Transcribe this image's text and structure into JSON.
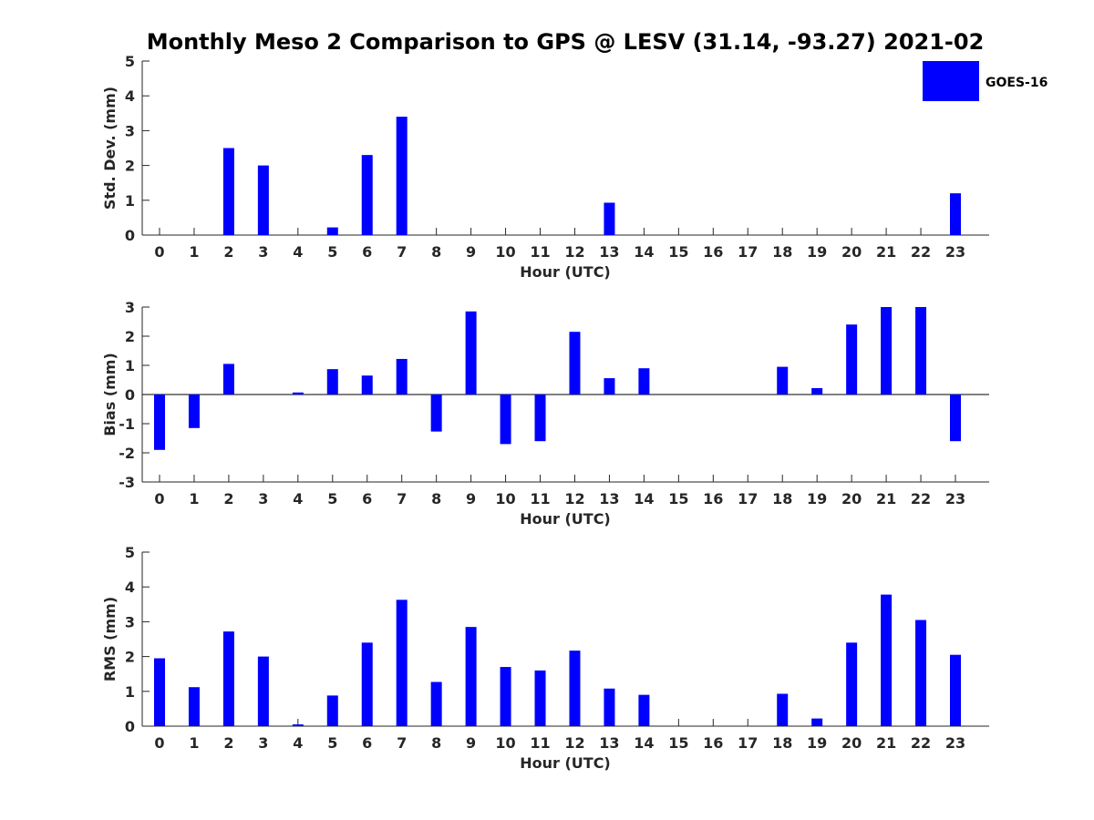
{
  "title": "Monthly Meso 2 Comparison to GPS @ LESV (31.14, -93.27) 2021-02",
  "legend": {
    "label": "GOES-16",
    "color": "#0000ff",
    "placement": "top-right"
  },
  "colors": {
    "bar": "#0000ff",
    "axis": "#262626"
  },
  "chart_data": [
    {
      "type": "bar",
      "ylabel": "Std. Dev. (mm)",
      "xlabel": "Hour (UTC)",
      "categories": [
        "0",
        "1",
        "2",
        "3",
        "4",
        "5",
        "6",
        "7",
        "8",
        "9",
        "10",
        "11",
        "12",
        "13",
        "14",
        "15",
        "16",
        "17",
        "18",
        "19",
        "20",
        "21",
        "22",
        "23"
      ],
      "values": [
        0,
        0,
        2.5,
        2.0,
        0,
        0.22,
        2.3,
        3.4,
        0,
        0,
        0,
        0,
        0,
        0.93,
        0,
        0,
        0,
        0,
        0,
        0,
        0,
        0,
        0,
        1.2
      ],
      "ylim": [
        0,
        5
      ],
      "yticks": [
        "0",
        "1",
        "2",
        "3",
        "4",
        "5"
      ],
      "grid": false
    },
    {
      "type": "bar",
      "ylabel": "Bias (mm)",
      "xlabel": "Hour (UTC)",
      "categories": [
        "0",
        "1",
        "2",
        "3",
        "4",
        "5",
        "6",
        "7",
        "8",
        "9",
        "10",
        "11",
        "12",
        "13",
        "14",
        "15",
        "16",
        "17",
        "18",
        "19",
        "20",
        "21",
        "22",
        "23"
      ],
      "values": [
        -1.9,
        -1.15,
        1.05,
        0,
        0.07,
        0.87,
        0.65,
        1.22,
        -1.27,
        2.85,
        -1.7,
        -1.6,
        2.15,
        0.56,
        0.9,
        0,
        0,
        0,
        0.95,
        0.22,
        2.4,
        3.0,
        3.0,
        -1.6
      ],
      "ylim": [
        -3,
        3
      ],
      "yticks": [
        "-3",
        "-2",
        "-1",
        "0",
        "1",
        "2",
        "3"
      ],
      "grid": false
    },
    {
      "type": "bar",
      "ylabel": "RMS (mm)",
      "xlabel": "Hour (UTC)",
      "categories": [
        "0",
        "1",
        "2",
        "3",
        "4",
        "5",
        "6",
        "7",
        "8",
        "9",
        "10",
        "11",
        "12",
        "13",
        "14",
        "15",
        "16",
        "17",
        "18",
        "19",
        "20",
        "21",
        "22",
        "23"
      ],
      "values": [
        1.95,
        1.12,
        2.72,
        2.0,
        0.05,
        0.88,
        2.4,
        3.63,
        1.27,
        2.85,
        1.7,
        1.6,
        2.17,
        1.08,
        0.9,
        0,
        0,
        0,
        0.93,
        0.22,
        2.4,
        3.78,
        3.05,
        2.05
      ],
      "ylim": [
        0,
        5
      ],
      "yticks": [
        "0",
        "1",
        "2",
        "3",
        "4",
        "5"
      ],
      "grid": false
    }
  ]
}
